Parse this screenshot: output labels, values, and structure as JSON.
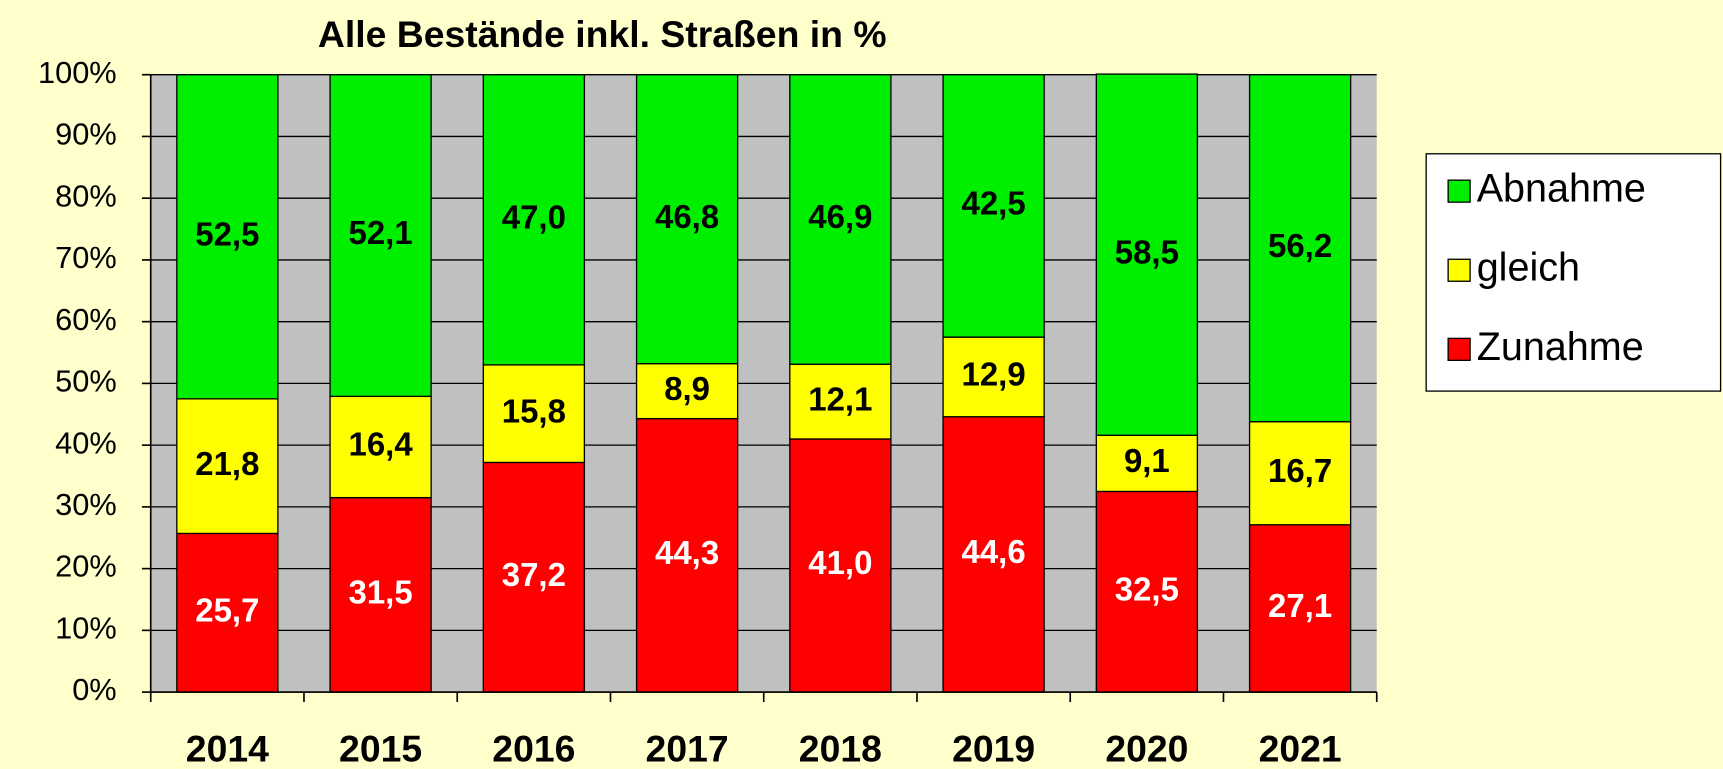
{
  "chart_data": {
    "type": "stacked_bar",
    "title": "Alle Bestände inkl. Straßen in %",
    "categories": [
      "2014",
      "2015",
      "2016",
      "2017",
      "2018",
      "2019",
      "2020",
      "2021"
    ],
    "series": [
      {
        "name": "Zunahme",
        "color": "#ff0000",
        "label_color": "#ffffff",
        "values": [
          25.7,
          31.5,
          37.2,
          44.3,
          41.0,
          44.6,
          32.5,
          27.1
        ],
        "value_labels": [
          "25,7",
          "31,5",
          "37,2",
          "44,3",
          "41,0",
          "44,6",
          "32,5",
          "27,1"
        ]
      },
      {
        "name": "gleich",
        "color": "#ffff00",
        "label_color": "#000000",
        "values": [
          21.8,
          16.4,
          15.8,
          8.9,
          12.1,
          12.9,
          9.1,
          16.7
        ],
        "value_labels": [
          "21,8",
          "16,4",
          "15,8",
          "8,9",
          "12,1",
          "12,9",
          "9,1",
          "16,7"
        ]
      },
      {
        "name": "Abnahme",
        "color": "#00ee00",
        "label_color": "#000000",
        "values": [
          52.5,
          52.1,
          47.0,
          46.8,
          46.9,
          42.5,
          58.5,
          56.2
        ],
        "value_labels": [
          "52,5",
          "52,1",
          "47,0",
          "46,8",
          "46,9",
          "42,5",
          "58,5",
          "56,2"
        ]
      }
    ],
    "ylim": [
      0,
      100
    ],
    "yticks": [
      {
        "value": 0,
        "label": "0%"
      },
      {
        "value": 10,
        "label": "10%"
      },
      {
        "value": 20,
        "label": "20%"
      },
      {
        "value": 30,
        "label": "30%"
      },
      {
        "value": 40,
        "label": "40%"
      },
      {
        "value": 50,
        "label": "50%"
      },
      {
        "value": 60,
        "label": "60%"
      },
      {
        "value": 70,
        "label": "70%"
      },
      {
        "value": 80,
        "label": "80%"
      },
      {
        "value": 90,
        "label": "90%"
      },
      {
        "value": 100,
        "label": "100%"
      }
    ],
    "grid": true,
    "legend": "right"
  }
}
